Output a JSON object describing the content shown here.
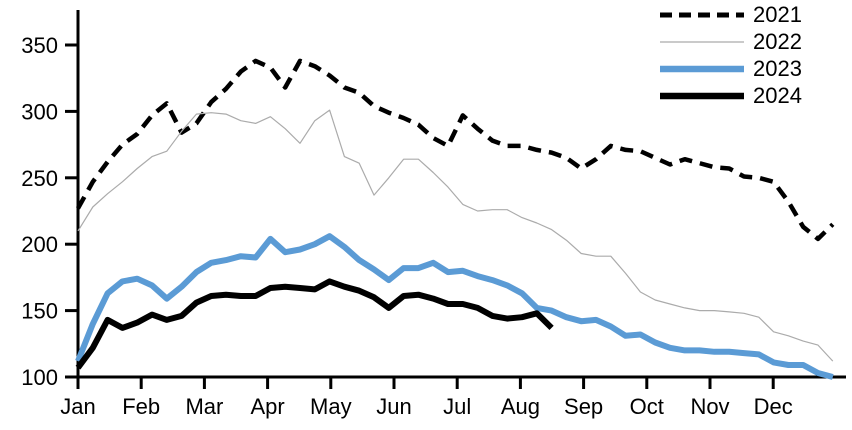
{
  "chart_data": {
    "type": "line",
    "title": "",
    "xlabel": "",
    "ylabel": "",
    "x_axis": {
      "tick_labels": [
        "Jan",
        "Feb",
        "Mar",
        "Apr",
        "May",
        "Jun",
        "Jul",
        "Aug",
        "Sep",
        "Oct",
        "Nov",
        "Dec"
      ]
    },
    "y_axis": {
      "ticks": [
        100,
        150,
        200,
        250,
        300,
        350
      ],
      "range": [
        100,
        360
      ],
      "grid": false
    },
    "sampling": "weekly",
    "legend_position": "top-right",
    "colors": {
      "black": "#000000",
      "gray": "#ababab",
      "blue": "#5b9bd5"
    },
    "series": [
      {
        "name": "2021",
        "color": "#000000",
        "style": "dashed",
        "width": 4.5,
        "values": [
          227,
          247,
          262,
          275,
          283,
          297,
          306,
          284,
          291,
          307,
          317,
          330,
          338,
          333,
          318,
          338,
          334,
          327,
          318,
          314,
          304,
          299,
          295,
          290,
          280,
          274,
          297,
          287,
          278,
          274,
          274,
          271,
          269,
          265,
          257,
          264,
          274,
          271,
          270,
          265,
          260,
          264,
          261,
          258,
          257,
          251,
          250,
          247,
          232,
          213,
          204,
          215
        ]
      },
      {
        "name": "2022",
        "color": "#ababab",
        "style": "solid",
        "width": 1.2,
        "values": [
          210,
          228,
          238,
          247,
          257,
          266,
          270,
          285,
          298,
          299,
          298,
          293,
          291,
          296,
          287,
          276,
          293,
          301,
          266,
          261,
          237,
          250,
          264,
          264,
          254,
          243,
          230,
          225,
          226,
          226,
          220,
          216,
          211,
          203,
          193,
          191,
          191,
          178,
          164,
          158,
          155,
          152,
          150,
          150,
          149,
          148,
          145,
          134,
          131,
          127,
          124,
          112
        ]
      },
      {
        "name": "2023",
        "color": "#5b9bd5",
        "style": "solid",
        "width": 6,
        "values": [
          112,
          140,
          163,
          172,
          174,
          169,
          159,
          168,
          179,
          186,
          188,
          191,
          190,
          204,
          194,
          196,
          200,
          206,
          198,
          188,
          181,
          173,
          182,
          182,
          186,
          179,
          180,
          176,
          173,
          169,
          163,
          152,
          150,
          145,
          142,
          143,
          138,
          131,
          132,
          126,
          122,
          120,
          120,
          119,
          119,
          118,
          117,
          111,
          109,
          109,
          103,
          100
        ]
      },
      {
        "name": "2024",
        "color": "#000000",
        "style": "solid",
        "width": 6,
        "values": [
          107,
          122,
          143,
          137,
          141,
          147,
          143,
          146,
          156,
          161,
          162,
          161,
          161,
          167,
          168,
          167,
          166,
          172,
          168,
          165,
          160,
          152,
          161,
          162,
          159,
          155,
          155,
          152,
          146,
          144,
          145,
          148,
          137
        ]
      }
    ]
  }
}
